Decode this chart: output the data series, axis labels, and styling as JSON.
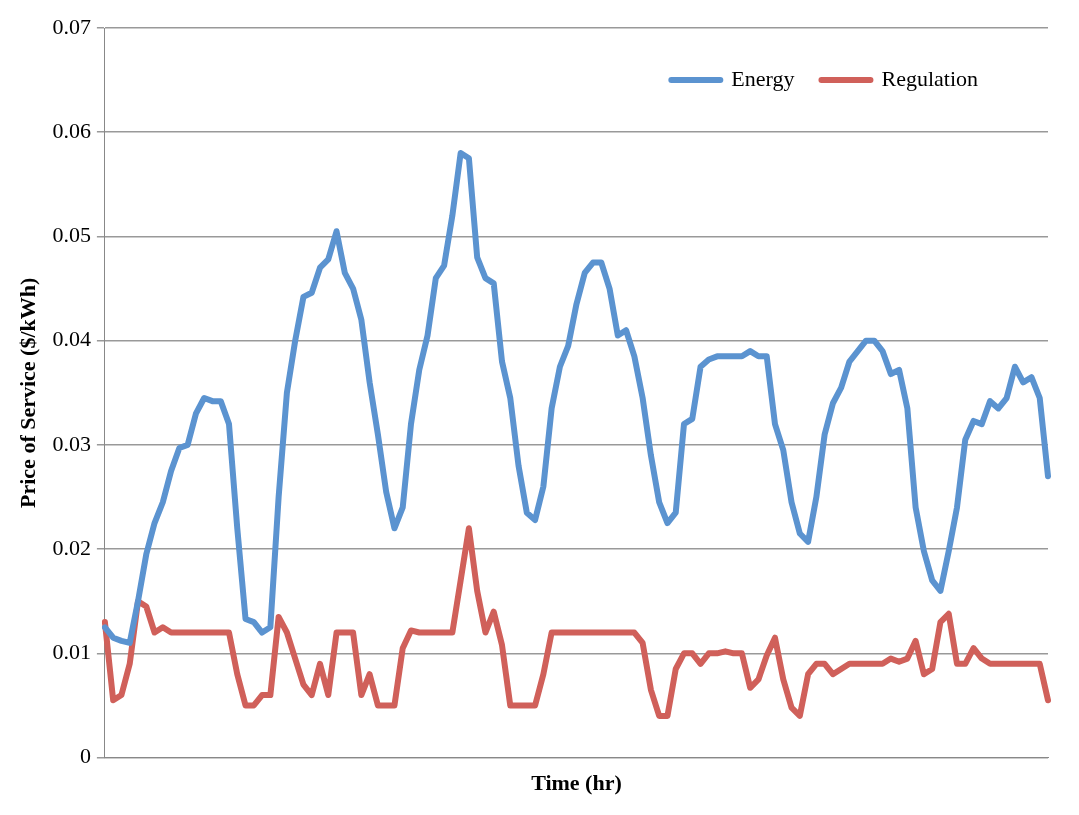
{
  "chart_data": {
    "type": "line",
    "xlabel": "Time (hr)",
    "ylabel": "Price of Service ($/kWh)",
    "categories": [
      null,
      null,
      null,
      null,
      null,
      null,
      null,
      null,
      null,
      null,
      null,
      null,
      null,
      null,
      null,
      null,
      null,
      null,
      null,
      null,
      null,
      null,
      null,
      null,
      null,
      null,
      null,
      null,
      null,
      null,
      null,
      null,
      null,
      null,
      null,
      null,
      null,
      null,
      null,
      null,
      null,
      null,
      null,
      null,
      null,
      null,
      null,
      null,
      null,
      null,
      null,
      null,
      null,
      null,
      null,
      null,
      null,
      null,
      null,
      null,
      null,
      null,
      null,
      null,
      null,
      null,
      null,
      null,
      null,
      null,
      null,
      null,
      null,
      null,
      null,
      null,
      null,
      null,
      null,
      null,
      null,
      null,
      null,
      null,
      null,
      null,
      null,
      null,
      null,
      null,
      null,
      null,
      null,
      null,
      null,
      null,
      null,
      null,
      null,
      null,
      null,
      null,
      null,
      null,
      null,
      null,
      null,
      null,
      null,
      null,
      null,
      null,
      null,
      null,
      null
    ],
    "series": [
      {
        "name": "Energy",
        "color": "#5b93d0",
        "values": [
          0.0125,
          0.0115,
          0.0112,
          0.011,
          0.015,
          0.0195,
          0.0225,
          0.0245,
          0.0275,
          0.0297,
          0.03,
          0.033,
          0.0345,
          0.0342,
          0.0342,
          0.032,
          0.022,
          0.0133,
          0.013,
          0.012,
          0.0125,
          0.025,
          0.035,
          0.04,
          0.0442,
          0.0446,
          0.047,
          0.0478,
          0.0505,
          0.0465,
          0.045,
          0.042,
          0.036,
          0.031,
          0.0255,
          0.022,
          0.024,
          0.032,
          0.0372,
          0.0405,
          0.046,
          0.0472,
          0.052,
          0.058,
          0.0575,
          0.048,
          0.046,
          0.0455,
          0.038,
          0.0345,
          0.028,
          0.0235,
          0.0228,
          0.026,
          0.0335,
          0.0375,
          0.0395,
          0.0435,
          0.0465,
          0.0475,
          0.0475,
          0.045,
          0.0405,
          0.041,
          0.0385,
          0.0345,
          0.029,
          0.0245,
          0.0225,
          0.0235,
          0.032,
          0.0325,
          0.0375,
          0.0382,
          0.0385,
          0.0385,
          0.0385,
          0.0385,
          0.039,
          0.0385,
          0.0385,
          0.032,
          0.0295,
          0.0245,
          0.0215,
          0.0207,
          0.025,
          0.031,
          0.034,
          0.0355,
          0.038,
          0.039,
          0.04,
          0.04,
          0.039,
          0.0368,
          0.0372,
          0.0335,
          0.024,
          0.0198,
          0.017,
          0.016,
          0.0198,
          0.024,
          0.0305,
          0.0323,
          0.032,
          0.0342,
          0.0335,
          0.0345,
          0.0375,
          0.036,
          0.0365,
          0.0345,
          0.027
        ]
      },
      {
        "name": "Regulation",
        "color": "#d0605a",
        "values": [
          0.013,
          0.0055,
          0.006,
          0.009,
          0.015,
          0.0145,
          0.012,
          0.0125,
          0.012,
          0.012,
          0.012,
          0.012,
          0.012,
          0.012,
          0.012,
          0.012,
          0.008,
          0.005,
          0.005,
          0.006,
          0.006,
          0.0135,
          0.012,
          0.0095,
          0.007,
          0.006,
          0.009,
          0.006,
          0.012,
          0.012,
          0.012,
          0.006,
          0.008,
          0.005,
          0.005,
          0.005,
          0.0105,
          0.0122,
          0.012,
          0.012,
          0.012,
          0.012,
          0.012,
          0.017,
          0.022,
          0.016,
          0.012,
          0.014,
          0.0108,
          0.005,
          0.005,
          0.005,
          0.005,
          0.008,
          0.012,
          0.012,
          0.012,
          0.012,
          0.012,
          0.012,
          0.012,
          0.012,
          0.012,
          0.012,
          0.012,
          0.011,
          0.0065,
          0.004,
          0.004,
          0.0085,
          0.01,
          0.01,
          0.009,
          0.01,
          0.01,
          0.0102,
          0.01,
          0.01,
          0.0067,
          0.0075,
          0.0098,
          0.0115,
          0.0075,
          0.0048,
          0.004,
          0.008,
          0.009,
          0.009,
          0.008,
          0.0085,
          0.009,
          0.009,
          0.009,
          0.009,
          0.009,
          0.0095,
          0.0092,
          0.0095,
          0.0112,
          0.008,
          0.0085,
          0.013,
          0.0138,
          0.009,
          0.009,
          0.0105,
          0.0095,
          0.009,
          0.009,
          0.009,
          0.009,
          0.009,
          0.009,
          0.009,
          0.0055
        ]
      }
    ],
    "ylim": [
      0,
      0.07
    ],
    "yticks": [
      0,
      0.01,
      0.02,
      0.03,
      0.04,
      0.05,
      0.06,
      0.07
    ],
    "grid": "y",
    "legend": "top right",
    "tick_labels": "y",
    "marker": "none",
    "line_style": "solid"
  }
}
